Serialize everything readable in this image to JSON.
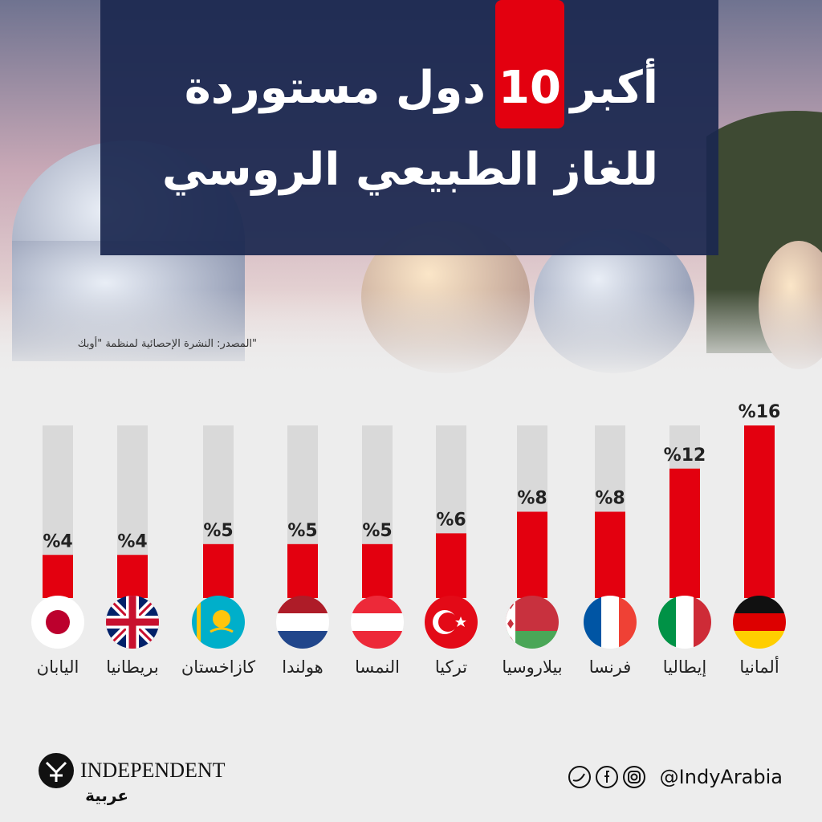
{
  "chart_data": {
    "type": "bar",
    "title": {
      "line1_start": "أكبر",
      "number": "10",
      "line1_end": "دول مستوردة",
      "line2": "للغاز الطبيعي الروسي"
    },
    "source": "المصدر: النشرة الإحصائية لمنظمة \"أوبك\"",
    "categories": [
      "ألمانيا",
      "إيطاليا",
      "فرنسا",
      "بيلاروسيا",
      "تركيا",
      "النمسا",
      "هولندا",
      "كازاخستان",
      "بريطانيا",
      "اليابان"
    ],
    "values": [
      16,
      12,
      8,
      8,
      6,
      5,
      5,
      5,
      4,
      4
    ],
    "value_labels": [
      "%16",
      "%12",
      "%8",
      "%8",
      "%6",
      "%5",
      "%5",
      "%5",
      "%4",
      "%4"
    ],
    "color": "#e3000f",
    "track_color": "#d9d9d9",
    "ylim": [
      0,
      16
    ]
  },
  "footer": {
    "logo": "INDEPENDENT",
    "logo_sub": "عربية",
    "handle": "@IndyArabia"
  }
}
